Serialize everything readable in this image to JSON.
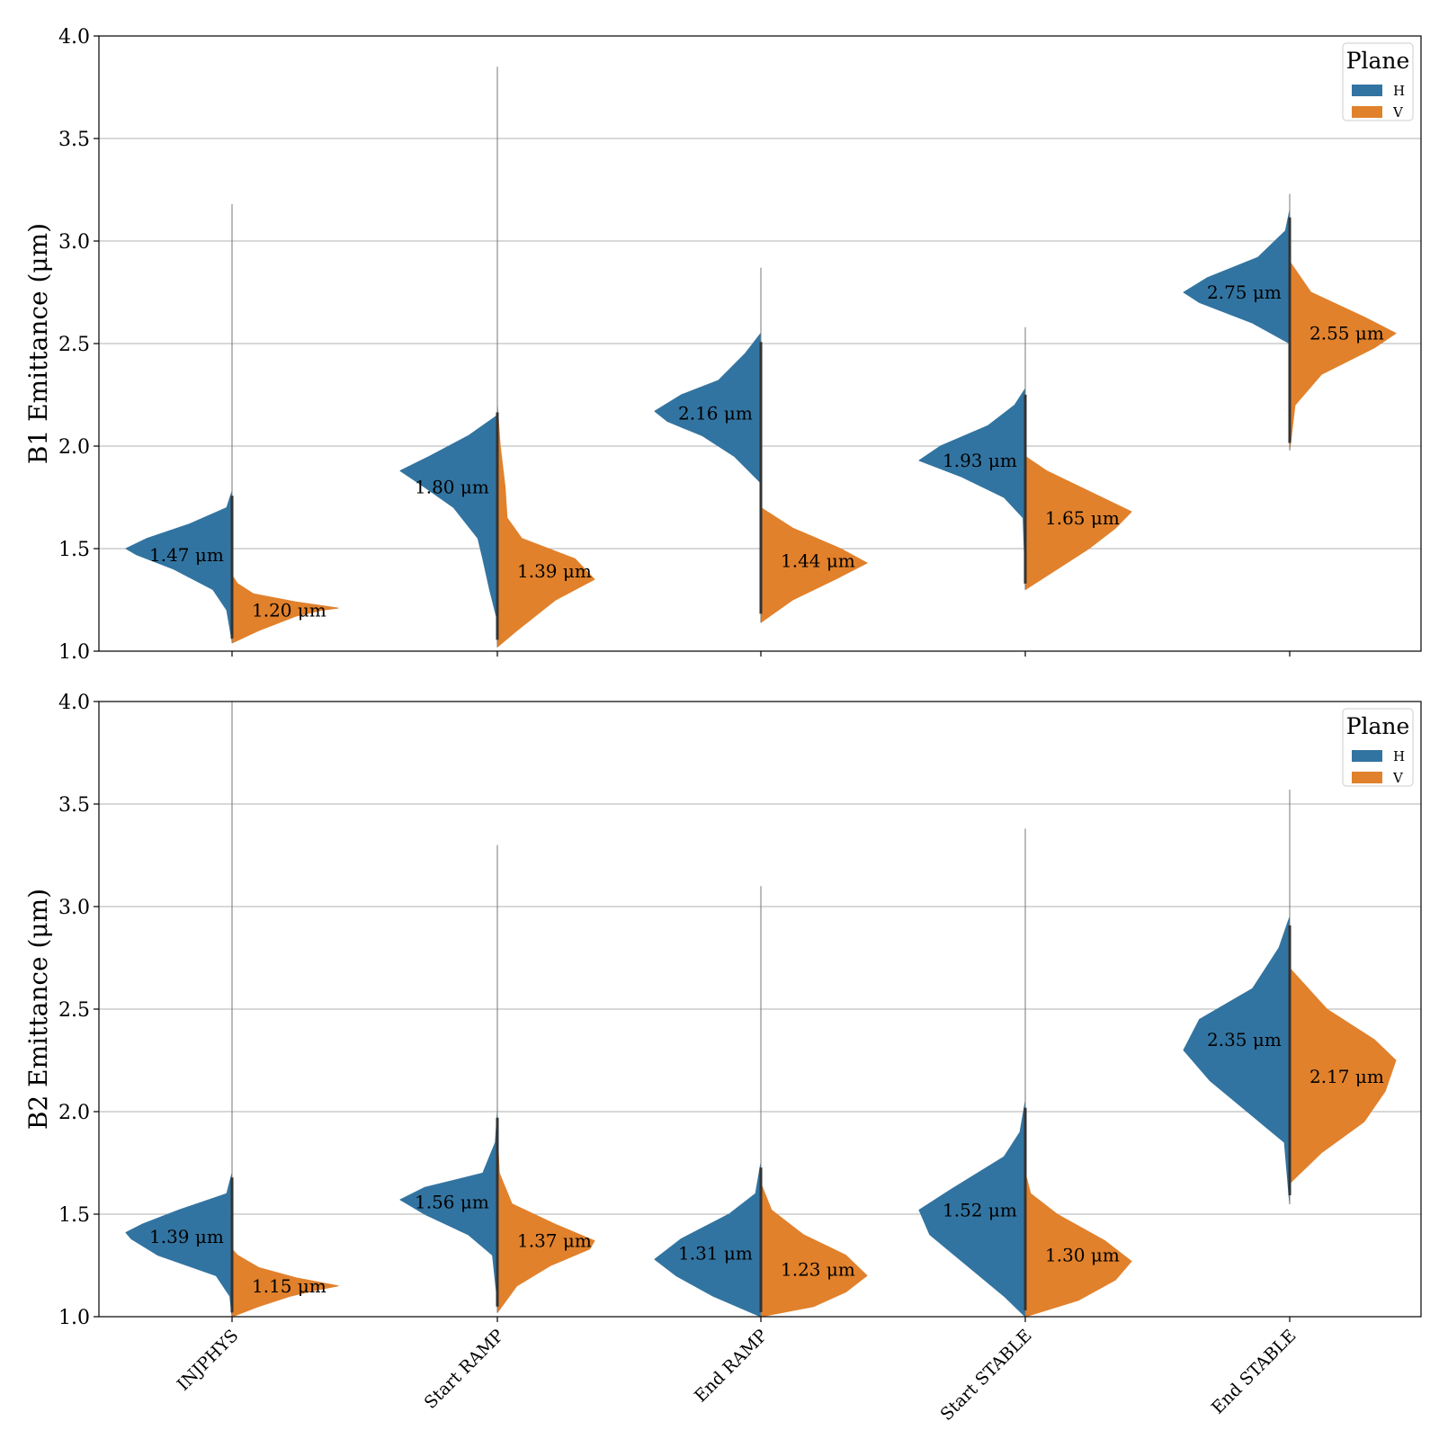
{
  "chart_data": [
    {
      "type": "violin",
      "ylabel": "B1 Emittance (μm)",
      "ylim": [
        1.0,
        4.0
      ],
      "yticks": [
        "1.0",
        "1.5",
        "2.0",
        "2.5",
        "3.0",
        "3.5",
        "4.0"
      ],
      "grid": "horizontal",
      "legend": {
        "title": "Plane",
        "location": "top-right",
        "entries": [
          "H",
          "V"
        ]
      },
      "categories": [
        "INJPHYS",
        "Start RAMP",
        "End RAMP",
        "Start STABLE",
        "End STABLE"
      ],
      "series": [
        {
          "name": "H",
          "color": "#3274a1",
          "medians": [
            1.47,
            1.8,
            2.16,
            1.93,
            2.75
          ],
          "labels": [
            "1.47 μm",
            "1.80 μm",
            "2.16 μm",
            "1.93 μm",
            "2.75 μm"
          ],
          "ranges": [
            [
              1.05,
              3.18
            ],
            [
              1.15,
              3.85
            ],
            [
              1.82,
              2.87
            ],
            [
              1.36,
              2.58
            ],
            [
              2.5,
              3.23
            ]
          ],
          "density": [
            [
              [
                1.05,
                0.0
              ],
              [
                1.2,
                0.05
              ],
              [
                1.3,
                0.18
              ],
              [
                1.4,
                0.55
              ],
              [
                1.47,
                0.9
              ],
              [
                1.5,
                1.0
              ],
              [
                1.55,
                0.8
              ],
              [
                1.62,
                0.4
              ],
              [
                1.7,
                0.05
              ],
              [
                1.78,
                0.0
              ]
            ],
            [
              [
                1.15,
                0.0
              ],
              [
                1.3,
                0.08
              ],
              [
                1.45,
                0.15
              ],
              [
                1.55,
                0.2
              ],
              [
                1.7,
                0.45
              ],
              [
                1.8,
                0.75
              ],
              [
                1.88,
                1.0
              ],
              [
                1.95,
                0.7
              ],
              [
                2.05,
                0.3
              ],
              [
                2.15,
                0.0
              ]
            ],
            [
              [
                1.82,
                0.0
              ],
              [
                1.95,
                0.25
              ],
              [
                2.05,
                0.55
              ],
              [
                2.12,
                0.88
              ],
              [
                2.17,
                1.0
              ],
              [
                2.25,
                0.75
              ],
              [
                2.32,
                0.4
              ],
              [
                2.45,
                0.15
              ],
              [
                2.55,
                0.0
              ]
            ],
            [
              [
                1.36,
                0.0
              ],
              [
                1.65,
                0.02
              ],
              [
                1.75,
                0.2
              ],
              [
                1.85,
                0.6
              ],
              [
                1.93,
                1.0
              ],
              [
                2.0,
                0.8
              ],
              [
                2.1,
                0.35
              ],
              [
                2.2,
                0.1
              ],
              [
                2.28,
                0.0
              ]
            ],
            [
              [
                2.5,
                0.0
              ],
              [
                2.6,
                0.35
              ],
              [
                2.7,
                0.85
              ],
              [
                2.75,
                1.0
              ],
              [
                2.82,
                0.78
              ],
              [
                2.92,
                0.3
              ],
              [
                3.05,
                0.04
              ],
              [
                3.15,
                0.0
              ]
            ]
          ]
        },
        {
          "name": "V",
          "color": "#e1812c",
          "medians": [
            1.2,
            1.39,
            1.44,
            1.65,
            2.55
          ],
          "labels": [
            "1.20 μm",
            "1.39 μm",
            "1.44 μm",
            "1.65 μm",
            "2.55 μm"
          ],
          "ranges": [
            [
              1.04,
              1.37
            ],
            [
              1.02,
              2.27
            ],
            [
              1.14,
              1.76
            ],
            [
              1.3,
              1.95
            ],
            [
              1.98,
              2.9
            ]
          ],
          "density": [
            [
              [
                1.04,
                0.0
              ],
              [
                1.1,
                0.25
              ],
              [
                1.17,
                0.6
              ],
              [
                1.2,
                0.85
              ],
              [
                1.21,
                1.0
              ],
              [
                1.24,
                0.6
              ],
              [
                1.28,
                0.2
              ],
              [
                1.33,
                0.05
              ],
              [
                1.37,
                0.0
              ]
            ],
            [
              [
                1.02,
                0.0
              ],
              [
                1.1,
                0.2
              ],
              [
                1.25,
                0.6
              ],
              [
                1.35,
                1.0
              ],
              [
                1.45,
                0.8
              ],
              [
                1.55,
                0.25
              ],
              [
                1.65,
                0.1
              ],
              [
                1.8,
                0.08
              ],
              [
                2.0,
                0.03
              ],
              [
                2.2,
                0.0
              ]
            ],
            [
              [
                1.14,
                0.0
              ],
              [
                1.25,
                0.3
              ],
              [
                1.35,
                0.7
              ],
              [
                1.43,
                1.0
              ],
              [
                1.5,
                0.75
              ],
              [
                1.6,
                0.3
              ],
              [
                1.7,
                0.0
              ]
            ],
            [
              [
                1.3,
                0.0
              ],
              [
                1.4,
                0.3
              ],
              [
                1.5,
                0.6
              ],
              [
                1.6,
                0.85
              ],
              [
                1.68,
                1.0
              ],
              [
                1.78,
                0.6
              ],
              [
                1.88,
                0.2
              ],
              [
                1.95,
                0.0
              ]
            ],
            [
              [
                1.98,
                0.0
              ],
              [
                2.2,
                0.05
              ],
              [
                2.35,
                0.3
              ],
              [
                2.48,
                0.8
              ],
              [
                2.55,
                1.0
              ],
              [
                2.63,
                0.7
              ],
              [
                2.75,
                0.2
              ],
              [
                2.9,
                0.0
              ]
            ]
          ]
        }
      ]
    },
    {
      "type": "violin",
      "ylabel": "B2 Emittance (μm)",
      "ylim": [
        1.0,
        4.0
      ],
      "yticks": [
        "1.0",
        "1.5",
        "2.0",
        "2.5",
        "3.0",
        "3.5",
        "4.0"
      ],
      "grid": "horizontal",
      "legend": {
        "title": "Plane",
        "location": "top-right",
        "entries": [
          "H",
          "V"
        ]
      },
      "categories": [
        "INJPHYS",
        "Start RAMP",
        "End RAMP",
        "Start STABLE",
        "End STABLE"
      ],
      "series": [
        {
          "name": "H",
          "color": "#3274a1",
          "medians": [
            1.39,
            1.56,
            1.31,
            1.52,
            2.35
          ],
          "labels": [
            "1.39 μm",
            "1.56 μm",
            "1.31 μm",
            "1.52 μm",
            "2.35 μm"
          ],
          "ranges": [
            [
              1.0,
              4.0
            ],
            [
              1.08,
              3.3
            ],
            [
              1.0,
              3.1
            ],
            [
              1.0,
              3.38
            ],
            [
              1.55,
              3.57
            ]
          ],
          "density": [
            [
              [
                1.0,
                0.0
              ],
              [
                1.1,
                0.02
              ],
              [
                1.2,
                0.15
              ],
              [
                1.3,
                0.7
              ],
              [
                1.38,
                0.95
              ],
              [
                1.41,
                1.0
              ],
              [
                1.45,
                0.85
              ],
              [
                1.52,
                0.5
              ],
              [
                1.6,
                0.05
              ],
              [
                1.7,
                0.0
              ]
            ],
            [
              [
                1.08,
                0.0
              ],
              [
                1.3,
                0.05
              ],
              [
                1.4,
                0.3
              ],
              [
                1.5,
                0.75
              ],
              [
                1.57,
                1.0
              ],
              [
                1.63,
                0.75
              ],
              [
                1.7,
                0.15
              ],
              [
                1.85,
                0.02
              ],
              [
                2.0,
                0.0
              ]
            ],
            [
              [
                1.0,
                0.0
              ],
              [
                1.1,
                0.45
              ],
              [
                1.2,
                0.8
              ],
              [
                1.28,
                1.0
              ],
              [
                1.38,
                0.75
              ],
              [
                1.5,
                0.3
              ],
              [
                1.6,
                0.05
              ],
              [
                1.75,
                0.0
              ]
            ],
            [
              [
                1.0,
                0.0
              ],
              [
                1.1,
                0.2
              ],
              [
                1.25,
                0.55
              ],
              [
                1.4,
                0.9
              ],
              [
                1.52,
                1.0
              ],
              [
                1.62,
                0.7
              ],
              [
                1.78,
                0.2
              ],
              [
                1.9,
                0.05
              ],
              [
                2.05,
                0.0
              ]
            ],
            [
              [
                1.55,
                0.0
              ],
              [
                1.85,
                0.05
              ],
              [
                2.0,
                0.4
              ],
              [
                2.15,
                0.75
              ],
              [
                2.3,
                1.0
              ],
              [
                2.45,
                0.85
              ],
              [
                2.6,
                0.35
              ],
              [
                2.8,
                0.1
              ],
              [
                2.95,
                0.0
              ]
            ]
          ]
        },
        {
          "name": "V",
          "color": "#e1812c",
          "medians": [
            1.15,
            1.37,
            1.23,
            1.3,
            2.17
          ],
          "labels": [
            "1.15 μm",
            "1.37 μm",
            "1.23 μm",
            "1.30 μm",
            "2.17 μm"
          ],
          "ranges": [
            [
              1.0,
              1.33
            ],
            [
              1.02,
              2.65
            ],
            [
              1.0,
              2.1
            ],
            [
              1.0,
              2.82
            ],
            [
              1.65,
              2.7
            ]
          ],
          "density": [
            [
              [
                1.0,
                0.0
              ],
              [
                1.05,
                0.25
              ],
              [
                1.1,
                0.55
              ],
              [
                1.13,
                0.8
              ],
              [
                1.15,
                1.0
              ],
              [
                1.19,
                0.6
              ],
              [
                1.24,
                0.25
              ],
              [
                1.3,
                0.05
              ],
              [
                1.33,
                0.0
              ]
            ],
            [
              [
                1.02,
                0.0
              ],
              [
                1.15,
                0.2
              ],
              [
                1.25,
                0.55
              ],
              [
                1.33,
                0.95
              ],
              [
                1.37,
                1.0
              ],
              [
                1.45,
                0.6
              ],
              [
                1.55,
                0.15
              ],
              [
                1.7,
                0.02
              ],
              [
                1.9,
                0.0
              ]
            ],
            [
              [
                1.0,
                0.0
              ],
              [
                1.05,
                0.5
              ],
              [
                1.12,
                0.8
              ],
              [
                1.2,
                1.0
              ],
              [
                1.3,
                0.8
              ],
              [
                1.4,
                0.4
              ],
              [
                1.52,
                0.1
              ],
              [
                1.65,
                0.0
              ]
            ],
            [
              [
                1.0,
                0.0
              ],
              [
                1.08,
                0.5
              ],
              [
                1.18,
                0.85
              ],
              [
                1.27,
                1.0
              ],
              [
                1.37,
                0.75
              ],
              [
                1.5,
                0.3
              ],
              [
                1.6,
                0.05
              ],
              [
                1.7,
                0.0
              ]
            ],
            [
              [
                1.65,
                0.0
              ],
              [
                1.8,
                0.3
              ],
              [
                1.95,
                0.7
              ],
              [
                2.1,
                0.9
              ],
              [
                2.25,
                1.0
              ],
              [
                2.35,
                0.8
              ],
              [
                2.5,
                0.35
              ],
              [
                2.7,
                0.0
              ]
            ]
          ]
        }
      ]
    }
  ]
}
